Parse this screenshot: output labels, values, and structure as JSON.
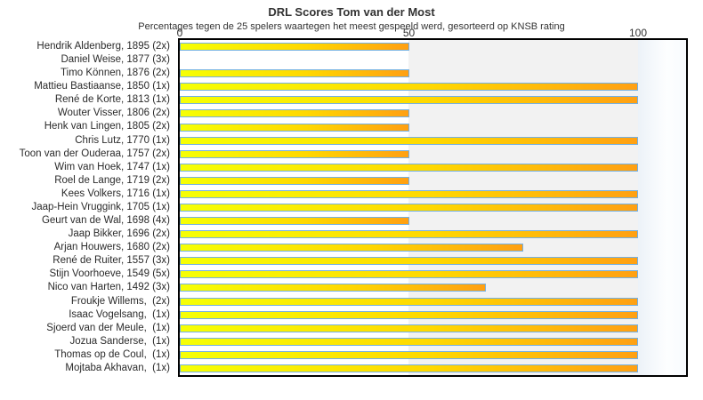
{
  "title": "DRL Scores Tom van der Most",
  "subtitle": "Percentages tegen de 25 spelers waartegen het meest gespeeld werd, gesorteerd op KNSB rating",
  "chart_data": {
    "type": "bar",
    "orientation": "horizontal",
    "title": "DRL Scores Tom van der Most",
    "subtitle": "Percentages tegen de 25 spelers waartegen het meest gespeeld werd, gesorteerd op KNSB rating",
    "xlabel": "",
    "ylabel": "",
    "xlim": [
      0,
      100
    ],
    "xticks": [
      0,
      50,
      100
    ],
    "grid": "band",
    "bands": [
      {
        "from": 0,
        "to": 50,
        "color": "#ffffff"
      },
      {
        "from": 50,
        "to": 100,
        "color": "#f2f2f2"
      }
    ],
    "players": [
      {
        "name": "Hendrik Aldenberg",
        "rating": "1895",
        "games": "2x",
        "value": 50
      },
      {
        "name": "Daniel Weise",
        "rating": "1877",
        "games": "3x",
        "value": 0
      },
      {
        "name": "Timo Können",
        "rating": "1876",
        "games": "2x",
        "value": 50
      },
      {
        "name": "Mattieu Bastiaanse",
        "rating": "1850",
        "games": "1x",
        "value": 100
      },
      {
        "name": "René de Korte",
        "rating": "1813",
        "games": "1x",
        "value": 100
      },
      {
        "name": "Wouter Visser",
        "rating": "1806",
        "games": "2x",
        "value": 50
      },
      {
        "name": "Henk van Lingen",
        "rating": "1805",
        "games": "2x",
        "value": 50
      },
      {
        "name": "Chris Lutz",
        "rating": "1770",
        "games": "1x",
        "value": 100
      },
      {
        "name": "Toon van der Ouderaa",
        "rating": "1757",
        "games": "2x",
        "value": 50
      },
      {
        "name": "Wim van Hoek",
        "rating": "1747",
        "games": "1x",
        "value": 100
      },
      {
        "name": "Roel de Lange",
        "rating": "1719",
        "games": "2x",
        "value": 50
      },
      {
        "name": "Kees Volkers",
        "rating": "1716",
        "games": "1x",
        "value": 100
      },
      {
        "name": "Jaap-Hein Vruggink",
        "rating": "1705",
        "games": "1x",
        "value": 100
      },
      {
        "name": "Geurt van de Wal",
        "rating": "1698",
        "games": "4x",
        "value": 50
      },
      {
        "name": "Jaap Bikker",
        "rating": "1696",
        "games": "2x",
        "value": 100
      },
      {
        "name": "Arjan Houwers",
        "rating": "1680",
        "games": "2x",
        "value": 75
      },
      {
        "name": "René de Ruiter",
        "rating": "1557",
        "games": "3x",
        "value": 100
      },
      {
        "name": "Stijn Voorhoeve",
        "rating": "1549",
        "games": "5x",
        "value": 100
      },
      {
        "name": "Nico van Harten",
        "rating": "1492",
        "games": "3x",
        "value": 66.7
      },
      {
        "name": "Froukje Willems",
        "rating": "",
        "games": "2x",
        "value": 100
      },
      {
        "name": "Isaac Vogelsang",
        "rating": "",
        "games": "1x",
        "value": 100
      },
      {
        "name": "Sjoerd van der Meule",
        "rating": "",
        "games": "1x",
        "value": 100
      },
      {
        "name": "Jozua Sanderse",
        "rating": "",
        "games": "1x",
        "value": 100
      },
      {
        "name": "Thomas op de Coul",
        "rating": "",
        "games": "1x",
        "value": 100
      },
      {
        "name": "Mojtaba Akhavan",
        "rating": "",
        "games": "1x",
        "value": 100
      }
    ]
  },
  "colors": {
    "bar_fill_start": "#f6ff05",
    "bar_fill_mid": "#ffd800",
    "bar_fill_end": "#ffa013",
    "bar_border": "#74b0e2",
    "band_gray": "#f2f2f2",
    "plot_border": "#000000",
    "text": "#333333"
  }
}
